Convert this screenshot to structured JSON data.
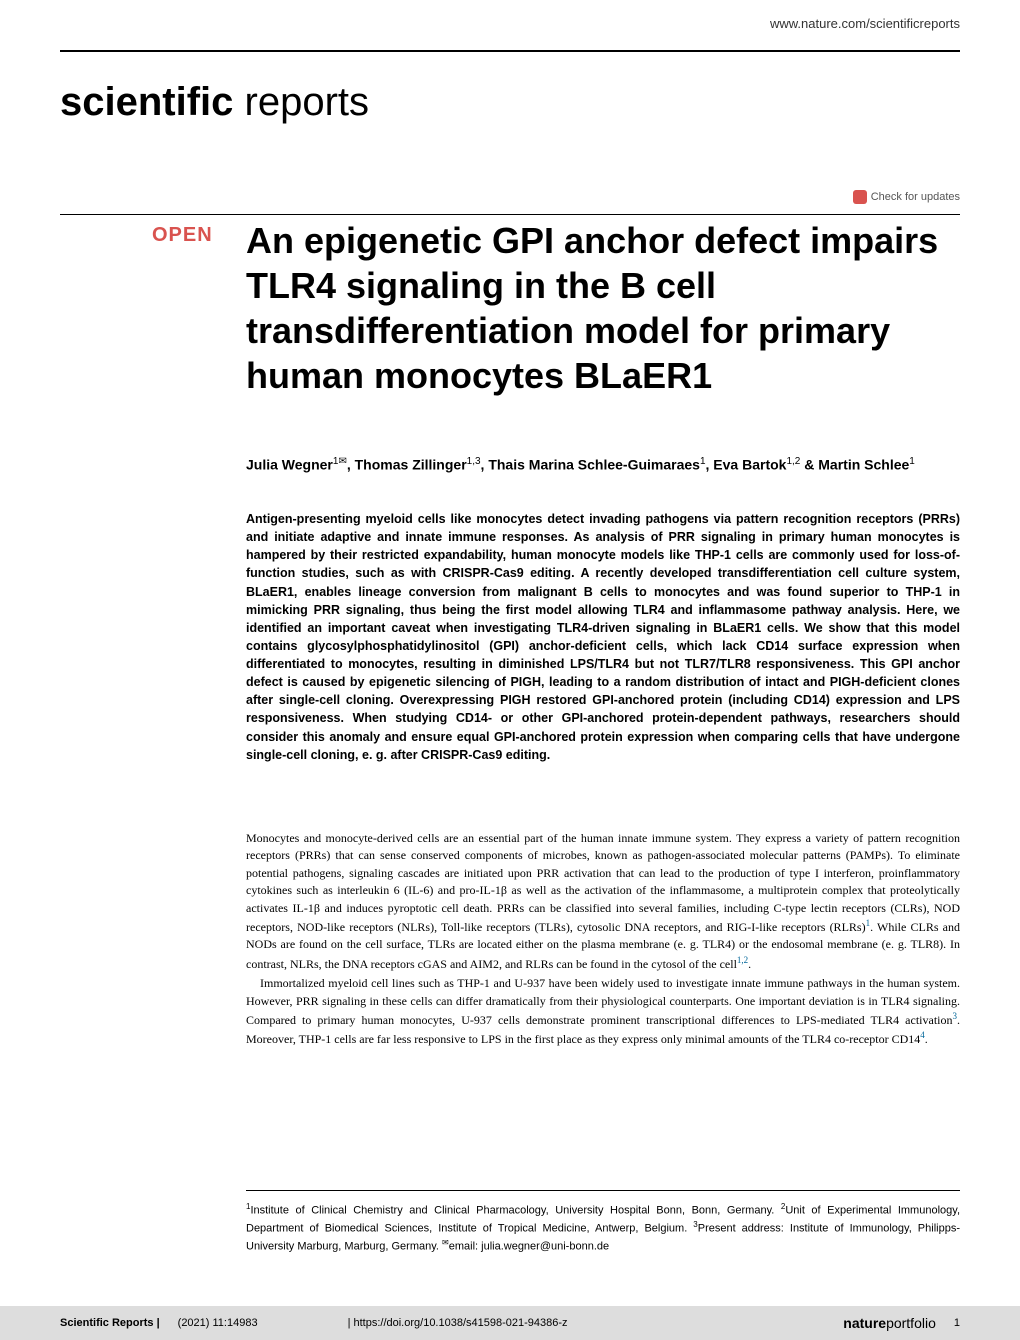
{
  "journal_url": "www.nature.com/scientificreports",
  "journal_name_bold": "scientific",
  "journal_name_light": " reports",
  "check_updates_label": "Check for updates",
  "open_badge": "OPEN",
  "title": "An epigenetic GPI anchor defect impairs TLR4 signaling in the B cell transdifferentiation model for primary human monocytes BLaER1",
  "authors_html": "Julia Wegner<sup>1✉</sup>, Thomas Zillinger<sup>1,3</sup>, Thais Marina Schlee-Guimaraes<sup>1</sup>, Eva Bartok<sup>1,2</sup> & Martin Schlee<sup>1</sup>",
  "abstract": "Antigen-presenting myeloid cells like monocytes detect invading pathogens via pattern recognition receptors (PRRs) and initiate adaptive and innate immune responses. As analysis of PRR signaling in primary human monocytes is hampered by their restricted expandability, human monocyte models like THP-1 cells are commonly used for loss-of-function studies, such as with CRISPR-Cas9 editing. A recently developed transdifferentiation cell culture system, BLaER1, enables lineage conversion from malignant B cells to monocytes and was found superior to THP-1 in mimicking PRR signaling, thus being the first model allowing TLR4 and inflammasome pathway analysis. Here, we identified an important caveat when investigating TLR4-driven signaling in BLaER1 cells. We show that this model contains glycosylphosphatidylinositol (GPI) anchor-deficient cells, which lack CD14 surface expression when differentiated to monocytes, resulting in diminished LPS/TLR4 but not TLR7/TLR8 responsiveness. This GPI anchor defect is caused by epigenetic silencing of PIGH, leading to a random distribution of intact and PIGH-deficient clones after single-cell cloning. Overexpressing PIGH restored GPI-anchored protein (including CD14) expression and LPS responsiveness. When studying CD14- or other GPI-anchored protein-dependent pathways, researchers should consider this anomaly and ensure equal GPI-anchored protein expression when comparing cells that have undergone single-cell cloning, e. g. after CRISPR-Cas9 editing.",
  "body_p1": "Monocytes and monocyte-derived cells are an essential part of the human innate immune system. They express a variety of pattern recognition receptors (PRRs) that can sense conserved components of microbes, known as pathogen-associated molecular patterns (PAMPs). To eliminate potential pathogens, signaling cascades are initiated upon PRR activation that can lead to the production of type I interferon, proinflammatory cytokines such as interleukin 6 (IL-6) and pro-IL-1β as well as the activation of the inflammasome, a multiprotein complex that proteolytically activates IL-1β and induces pyroptotic cell death. PRRs can be classified into several families, including C-type lectin receptors (CLRs), NOD receptors, NOD-like receptors (NLRs), Toll-like receptors (TLRs), cytosolic DNA receptors, and RIG-I-like receptors (RLRs)",
  "body_p1_ref1": "1",
  "body_p1_cont": ". While CLRs and NODs are found on the cell surface, TLRs are located either on the plasma membrane (e. g. TLR4) or the endosomal membrane (e. g. TLR8). In contrast, NLRs, the DNA receptors cGAS and AIM2, and RLRs can be found in the cytosol of the cell",
  "body_p1_ref2": "1,2",
  "body_p1_end": ".",
  "body_p2": "Immortalized myeloid cell lines such as THP-1 and U-937 have been widely used to investigate innate immune pathways in the human system. However, PRR signaling in these cells can differ dramatically from their physiological counterparts. One important deviation is in TLR4 signaling. Compared to primary human monocytes, U-937 cells demonstrate prominent transcriptional differences to LPS-mediated TLR4 activation",
  "body_p2_ref1": "3",
  "body_p2_cont": ". Moreover, THP-1 cells are far less responsive to LPS in the first place as they express only minimal amounts of the TLR4 co-receptor CD14",
  "body_p2_ref2": "4",
  "body_p2_end": ".",
  "affiliations_html": "<sup>1</sup>Institute of Clinical Chemistry and Clinical Pharmacology, University Hospital Bonn, Bonn, Germany. <sup>2</sup>Unit of Experimental Immunology, Department of Biomedical Sciences, Institute of Tropical Medicine, Antwerp, Belgium. <sup>3</sup>Present address: Institute of Immunology, Philipps-University Marburg, Marburg, Germany. <sup>✉</sup>email: julia.wegner@uni-bonn.de",
  "footer": {
    "journal": "Scientific Reports |",
    "issue": "(2021) 11:14983",
    "doi": "| https://doi.org/10.1038/s41598-021-94386-z",
    "portfolio_bold": "nature",
    "portfolio_light": "portfolio",
    "page": "1"
  },
  "colors": {
    "accent_red": "#d9534f",
    "link_blue": "#006699",
    "footer_bg": "#dddddd"
  }
}
